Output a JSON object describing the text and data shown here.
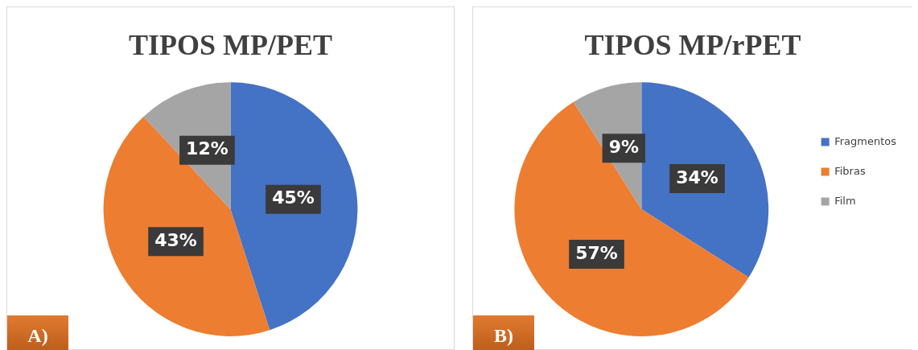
{
  "chart_data": [
    {
      "type": "pie",
      "title": "TIPOS MP/PET",
      "categories": [
        null,
        null,
        null
      ],
      "values": [
        45,
        43,
        12
      ],
      "colors": [
        "#4472c4",
        "#ed7d31",
        "#a5a5a5"
      ],
      "value_labels": [
        "45%",
        "43%",
        "12%"
      ],
      "legend": false,
      "annotations": [
        "A)"
      ]
    },
    {
      "type": "pie",
      "title": "TIPOS MP/rPET",
      "categories": [
        "Fragmentos",
        "Fibras",
        "Film"
      ],
      "values": [
        34,
        57,
        9
      ],
      "colors": [
        "#4472c4",
        "#ed7d31",
        "#a5a5a5"
      ],
      "value_labels": [
        "34%",
        "57%",
        "9%"
      ],
      "legend": "right",
      "annotations": [
        "B)"
      ]
    }
  ]
}
